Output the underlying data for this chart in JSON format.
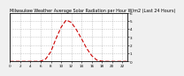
{
  "title": "Milwaukee Weather Average Solar Radiation per Hour W/m2 (Last 24 Hours)",
  "x_hours": [
    0,
    1,
    2,
    3,
    4,
    5,
    6,
    7,
    8,
    9,
    10,
    11,
    12,
    13,
    14,
    15,
    16,
    17,
    18,
    19,
    20,
    21,
    22,
    23
  ],
  "y_values": [
    0,
    0,
    0,
    0,
    0,
    0,
    2,
    30,
    120,
    280,
    420,
    510,
    480,
    390,
    280,
    160,
    70,
    15,
    2,
    0,
    0,
    0,
    0,
    0
  ],
  "line_color": "#cc0000",
  "bg_color": "#f0f0f0",
  "plot_bg_color": "#ffffff",
  "grid_color": "#888888",
  "y_max": 600,
  "right_ytick_vals": [
    0,
    100,
    200,
    300,
    400,
    500,
    600
  ],
  "right_ytick_labels": [
    "0",
    "1",
    "2",
    "3",
    "4",
    "5",
    "6"
  ],
  "x_tick_step": 2,
  "title_fontsize": 3.5,
  "tick_fontsize": 3.0
}
